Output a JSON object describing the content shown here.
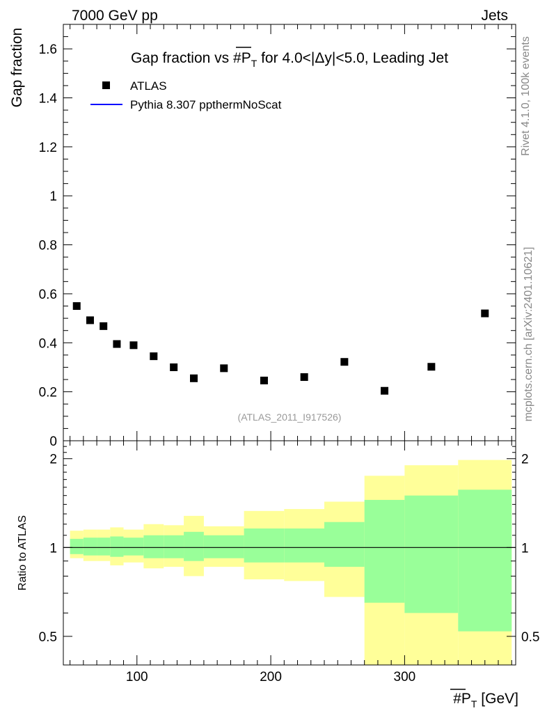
{
  "header": {
    "left": "7000 GeV pp",
    "right": "Jets"
  },
  "side_labels": {
    "rivet": "Rivet 4.1.0,  100k events",
    "source": "mcplots.cern.ch [arXiv:2401.10621]"
  },
  "chart_data": [
    {
      "type": "scatter",
      "panel": "main",
      "title_parts": {
        "pre": "Gap fraction vs #",
        "var": "P",
        "sub": "T",
        "post": " for 4.0<|Δy|<5.0, Leading Jet"
      },
      "ylabel": "Gap fraction",
      "xlim": [
        45,
        383
      ],
      "ylim": [
        0,
        1.7
      ],
      "yticks": [
        0,
        0.2,
        0.4,
        0.6,
        0.8,
        1,
        1.2,
        1.4,
        1.6
      ],
      "ytick_labels": [
        "0",
        "0.2",
        "0.4",
        "0.6",
        "0.8",
        "1",
        "1.2",
        "1.4",
        "1.6"
      ],
      "legend": [
        {
          "name": "ATLAS",
          "style": "marker",
          "color": "#000000"
        },
        {
          "name": "Pythia 8.307 ppthermNoScat",
          "style": "line",
          "color": "#0000ff"
        }
      ],
      "watermark": "(ATLAS_2011_I917526)",
      "series": [
        {
          "name": "ATLAS",
          "x": [
            55,
            65,
            75,
            85,
            97.5,
            112.5,
            127.5,
            142.5,
            165,
            195,
            225,
            255,
            285,
            320,
            360
          ],
          "y": [
            0.55,
            0.492,
            0.468,
            0.395,
            0.39,
            0.345,
            0.3,
            0.255,
            0.296,
            0.246,
            0.26,
            0.322,
            0.204,
            0.302,
            0.52
          ]
        }
      ]
    },
    {
      "type": "area",
      "panel": "ratio",
      "ylabel": "Ratio to ATLAS",
      "scale": "log",
      "ylim": [
        0.4,
        2.3
      ],
      "yticks": [
        0.5,
        1,
        2
      ],
      "ytick_labels": [
        "0.5",
        "1",
        "2"
      ],
      "xlabel_parts": {
        "pre": "#",
        "var": "P",
        "sub": "T",
        "post": " [GeV]"
      },
      "xticks": [
        100,
        200,
        300
      ],
      "xtick_labels": [
        "100",
        "200",
        "300"
      ],
      "bins": [
        {
          "xlo": 50,
          "xhi": 60,
          "green": [
            0.95,
            1.07
          ],
          "yellow": [
            0.92,
            1.14
          ]
        },
        {
          "xlo": 60,
          "xhi": 70,
          "green": [
            0.94,
            1.08
          ],
          "yellow": [
            0.9,
            1.15
          ]
        },
        {
          "xlo": 70,
          "xhi": 80,
          "green": [
            0.94,
            1.08
          ],
          "yellow": [
            0.9,
            1.15
          ]
        },
        {
          "xlo": 80,
          "xhi": 90,
          "green": [
            0.93,
            1.09
          ],
          "yellow": [
            0.87,
            1.17
          ]
        },
        {
          "xlo": 90,
          "xhi": 105,
          "green": [
            0.94,
            1.08
          ],
          "yellow": [
            0.89,
            1.15
          ]
        },
        {
          "xlo": 105,
          "xhi": 120,
          "green": [
            0.92,
            1.1
          ],
          "yellow": [
            0.85,
            1.2
          ]
        },
        {
          "xlo": 120,
          "xhi": 135,
          "green": [
            0.92,
            1.1
          ],
          "yellow": [
            0.86,
            1.19
          ]
        },
        {
          "xlo": 135,
          "xhi": 150,
          "green": [
            0.9,
            1.13
          ],
          "yellow": [
            0.8,
            1.28
          ]
        },
        {
          "xlo": 150,
          "xhi": 180,
          "green": [
            0.92,
            1.1
          ],
          "yellow": [
            0.86,
            1.18
          ]
        },
        {
          "xlo": 180,
          "xhi": 210,
          "green": [
            0.89,
            1.16
          ],
          "yellow": [
            0.78,
            1.33
          ]
        },
        {
          "xlo": 210,
          "xhi": 240,
          "green": [
            0.89,
            1.16
          ],
          "yellow": [
            0.77,
            1.35
          ]
        },
        {
          "xlo": 240,
          "xhi": 270,
          "green": [
            0.86,
            1.22
          ],
          "yellow": [
            0.68,
            1.43
          ]
        },
        {
          "xlo": 270,
          "xhi": 300,
          "green": [
            0.65,
            1.45
          ],
          "yellow": [
            0.4,
            1.75
          ]
        },
        {
          "xlo": 300,
          "xhi": 340,
          "green": [
            0.6,
            1.5
          ],
          "yellow": [
            0.4,
            1.9
          ]
        },
        {
          "xlo": 340,
          "xhi": 380,
          "green": [
            0.52,
            1.57
          ],
          "yellow": [
            0.4,
            1.98
          ]
        }
      ]
    }
  ],
  "colors": {
    "green": "#99ff99",
    "yellow": "#ffff99",
    "marker": "#000000",
    "mc_line": "#0000ff",
    "grey_text": "#888888"
  }
}
